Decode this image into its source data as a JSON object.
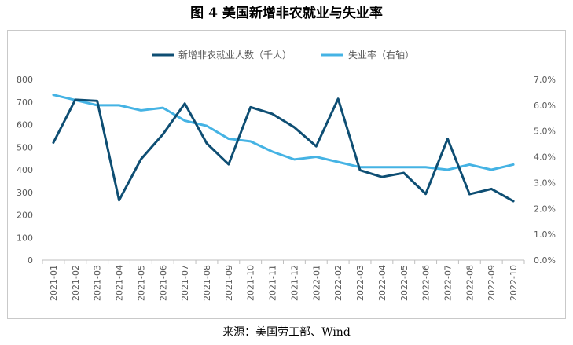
{
  "figure_title": "图 4  美国新增非农就业与失业率",
  "source": "来源：美国劳工部、Wind",
  "colors": {
    "payroll": "#0e4e73",
    "unemployment": "#45b3e4",
    "axis": "#bfbfbf",
    "tick": "#595959"
  },
  "chart_data": {
    "type": "line",
    "title": "",
    "categories": [
      "2021-01",
      "2021-02",
      "2021-03",
      "2021-04",
      "2021-05",
      "2021-06",
      "2021-07",
      "2021-08",
      "2021-09",
      "2021-10",
      "2021-11",
      "2021-12",
      "2022-01",
      "2022-02",
      "2022-03",
      "2022-04",
      "2022-05",
      "2022-06",
      "2022-07",
      "2022-08",
      "2022-09",
      "2022-10"
    ],
    "left_axis": {
      "ylim": [
        0,
        800
      ],
      "ticks": [
        "0",
        "100",
        "200",
        "300",
        "400",
        "500",
        "600",
        "700",
        "800"
      ]
    },
    "right_axis": {
      "ylim": [
        0,
        7
      ],
      "ticks": [
        "0.0%",
        "1.0%",
        "2.0%",
        "3.0%",
        "4.0%",
        "5.0%",
        "6.0%",
        "7.0%"
      ]
    },
    "legend_position": "top-center",
    "series": [
      {
        "name": "新增非农就业人数（千人）",
        "axis": "left",
        "values": [
          520,
          710,
          705,
          265,
          447,
          557,
          693,
          517,
          424,
          677,
          647,
          588,
          504,
          714,
          398,
          368,
          386,
          293,
          537,
          292,
          315,
          261
        ]
      },
      {
        "name": "失业率（右轴）",
        "axis": "right",
        "values": [
          6.4,
          6.2,
          6.0,
          6.0,
          5.8,
          5.9,
          5.4,
          5.2,
          4.7,
          4.6,
          4.2,
          3.9,
          4.0,
          3.8,
          3.6,
          3.6,
          3.6,
          3.6,
          3.5,
          3.7,
          3.5,
          3.7
        ]
      }
    ]
  }
}
